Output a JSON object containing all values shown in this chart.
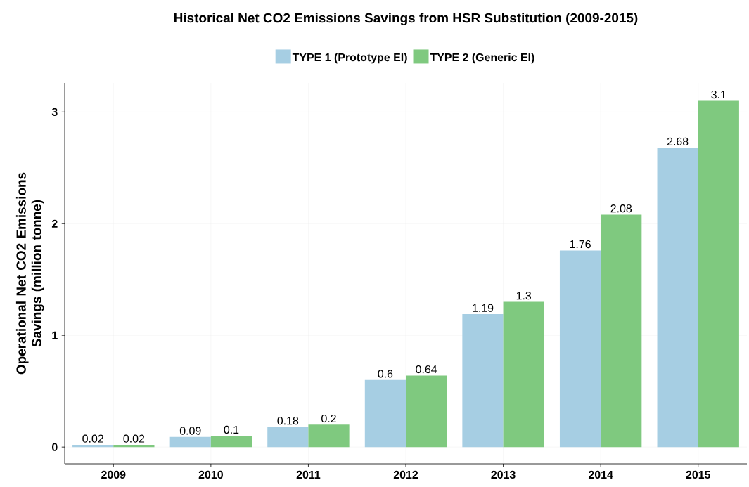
{
  "chart_data": {
    "type": "bar",
    "title": "Historical Net CO2 Emissions Savings from HSR Substitution (2009-2015)",
    "ylabel": "Operational Net CO2 Emissions Savings (million tonne)",
    "categories": [
      "2009",
      "2010",
      "2011",
      "2012",
      "2013",
      "2014",
      "2015"
    ],
    "series": [
      {
        "name": "TYPE 1 (Prototype EI)",
        "color": "#a6cee3",
        "values": [
          0.02,
          0.09,
          0.18,
          0.6,
          1.19,
          1.76,
          2.68
        ]
      },
      {
        "name": "TYPE 2 (Generic EI)",
        "color": "#7fc97f",
        "values": [
          0.02,
          0.1,
          0.2,
          0.64,
          1.3,
          2.08,
          3.1
        ]
      }
    ],
    "ylim": [
      -0.15,
      3.26
    ],
    "yticks": [
      0,
      1,
      2,
      3
    ],
    "grid": true,
    "legend": "top",
    "data_labels": true
  }
}
